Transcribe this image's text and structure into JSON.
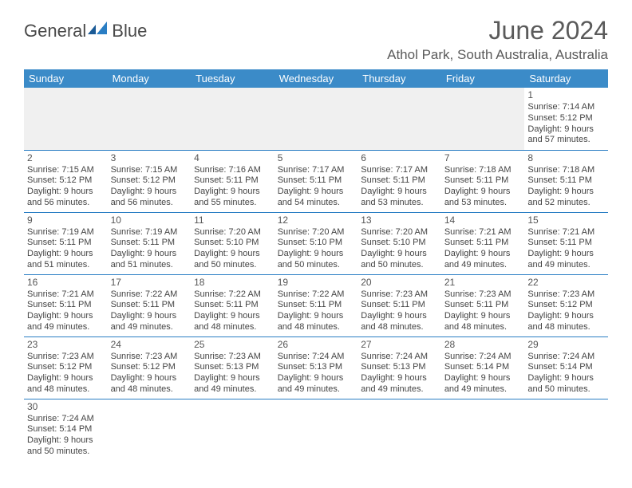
{
  "logo": {
    "part1": "General",
    "part2": "Blue"
  },
  "title": "June 2024",
  "location": "Athol Park, South Australia, Australia",
  "colors": {
    "header_bg": "#3b8bc8",
    "header_text": "#ffffff",
    "border": "#2a7ec4",
    "body_text": "#444444",
    "title_text": "#5a5a5a",
    "blank_bg": "#f0f0f0"
  },
  "day_headers": [
    "Sunday",
    "Monday",
    "Tuesday",
    "Wednesday",
    "Thursday",
    "Friday",
    "Saturday"
  ],
  "font": {
    "title_size": 32,
    "location_size": 17,
    "header_size": 13,
    "cell_size": 11
  },
  "weeks": [
    [
      {
        "blank": true
      },
      {
        "blank": true
      },
      {
        "blank": true
      },
      {
        "blank": true
      },
      {
        "blank": true
      },
      {
        "blank": true
      },
      {
        "day": "1",
        "sunrise": "Sunrise: 7:14 AM",
        "sunset": "Sunset: 5:12 PM",
        "daylight": "Daylight: 9 hours and 57 minutes."
      }
    ],
    [
      {
        "day": "2",
        "sunrise": "Sunrise: 7:15 AM",
        "sunset": "Sunset: 5:12 PM",
        "daylight": "Daylight: 9 hours and 56 minutes."
      },
      {
        "day": "3",
        "sunrise": "Sunrise: 7:15 AM",
        "sunset": "Sunset: 5:12 PM",
        "daylight": "Daylight: 9 hours and 56 minutes."
      },
      {
        "day": "4",
        "sunrise": "Sunrise: 7:16 AM",
        "sunset": "Sunset: 5:11 PM",
        "daylight": "Daylight: 9 hours and 55 minutes."
      },
      {
        "day": "5",
        "sunrise": "Sunrise: 7:17 AM",
        "sunset": "Sunset: 5:11 PM",
        "daylight": "Daylight: 9 hours and 54 minutes."
      },
      {
        "day": "6",
        "sunrise": "Sunrise: 7:17 AM",
        "sunset": "Sunset: 5:11 PM",
        "daylight": "Daylight: 9 hours and 53 minutes."
      },
      {
        "day": "7",
        "sunrise": "Sunrise: 7:18 AM",
        "sunset": "Sunset: 5:11 PM",
        "daylight": "Daylight: 9 hours and 53 minutes."
      },
      {
        "day": "8",
        "sunrise": "Sunrise: 7:18 AM",
        "sunset": "Sunset: 5:11 PM",
        "daylight": "Daylight: 9 hours and 52 minutes."
      }
    ],
    [
      {
        "day": "9",
        "sunrise": "Sunrise: 7:19 AM",
        "sunset": "Sunset: 5:11 PM",
        "daylight": "Daylight: 9 hours and 51 minutes."
      },
      {
        "day": "10",
        "sunrise": "Sunrise: 7:19 AM",
        "sunset": "Sunset: 5:11 PM",
        "daylight": "Daylight: 9 hours and 51 minutes."
      },
      {
        "day": "11",
        "sunrise": "Sunrise: 7:20 AM",
        "sunset": "Sunset: 5:10 PM",
        "daylight": "Daylight: 9 hours and 50 minutes."
      },
      {
        "day": "12",
        "sunrise": "Sunrise: 7:20 AM",
        "sunset": "Sunset: 5:10 PM",
        "daylight": "Daylight: 9 hours and 50 minutes."
      },
      {
        "day": "13",
        "sunrise": "Sunrise: 7:20 AM",
        "sunset": "Sunset: 5:10 PM",
        "daylight": "Daylight: 9 hours and 50 minutes."
      },
      {
        "day": "14",
        "sunrise": "Sunrise: 7:21 AM",
        "sunset": "Sunset: 5:11 PM",
        "daylight": "Daylight: 9 hours and 49 minutes."
      },
      {
        "day": "15",
        "sunrise": "Sunrise: 7:21 AM",
        "sunset": "Sunset: 5:11 PM",
        "daylight": "Daylight: 9 hours and 49 minutes."
      }
    ],
    [
      {
        "day": "16",
        "sunrise": "Sunrise: 7:21 AM",
        "sunset": "Sunset: 5:11 PM",
        "daylight": "Daylight: 9 hours and 49 minutes."
      },
      {
        "day": "17",
        "sunrise": "Sunrise: 7:22 AM",
        "sunset": "Sunset: 5:11 PM",
        "daylight": "Daylight: 9 hours and 49 minutes."
      },
      {
        "day": "18",
        "sunrise": "Sunrise: 7:22 AM",
        "sunset": "Sunset: 5:11 PM",
        "daylight": "Daylight: 9 hours and 48 minutes."
      },
      {
        "day": "19",
        "sunrise": "Sunrise: 7:22 AM",
        "sunset": "Sunset: 5:11 PM",
        "daylight": "Daylight: 9 hours and 48 minutes."
      },
      {
        "day": "20",
        "sunrise": "Sunrise: 7:23 AM",
        "sunset": "Sunset: 5:11 PM",
        "daylight": "Daylight: 9 hours and 48 minutes."
      },
      {
        "day": "21",
        "sunrise": "Sunrise: 7:23 AM",
        "sunset": "Sunset: 5:11 PM",
        "daylight": "Daylight: 9 hours and 48 minutes."
      },
      {
        "day": "22",
        "sunrise": "Sunrise: 7:23 AM",
        "sunset": "Sunset: 5:12 PM",
        "daylight": "Daylight: 9 hours and 48 minutes."
      }
    ],
    [
      {
        "day": "23",
        "sunrise": "Sunrise: 7:23 AM",
        "sunset": "Sunset: 5:12 PM",
        "daylight": "Daylight: 9 hours and 48 minutes."
      },
      {
        "day": "24",
        "sunrise": "Sunrise: 7:23 AM",
        "sunset": "Sunset: 5:12 PM",
        "daylight": "Daylight: 9 hours and 48 minutes."
      },
      {
        "day": "25",
        "sunrise": "Sunrise: 7:23 AM",
        "sunset": "Sunset: 5:13 PM",
        "daylight": "Daylight: 9 hours and 49 minutes."
      },
      {
        "day": "26",
        "sunrise": "Sunrise: 7:24 AM",
        "sunset": "Sunset: 5:13 PM",
        "daylight": "Daylight: 9 hours and 49 minutes."
      },
      {
        "day": "27",
        "sunrise": "Sunrise: 7:24 AM",
        "sunset": "Sunset: 5:13 PM",
        "daylight": "Daylight: 9 hours and 49 minutes."
      },
      {
        "day": "28",
        "sunrise": "Sunrise: 7:24 AM",
        "sunset": "Sunset: 5:14 PM",
        "daylight": "Daylight: 9 hours and 49 minutes."
      },
      {
        "day": "29",
        "sunrise": "Sunrise: 7:24 AM",
        "sunset": "Sunset: 5:14 PM",
        "daylight": "Daylight: 9 hours and 50 minutes."
      }
    ],
    [
      {
        "day": "30",
        "sunrise": "Sunrise: 7:24 AM",
        "sunset": "Sunset: 5:14 PM",
        "daylight": "Daylight: 9 hours and 50 minutes."
      },
      {
        "trailing": true
      },
      {
        "trailing": true
      },
      {
        "trailing": true
      },
      {
        "trailing": true
      },
      {
        "trailing": true
      },
      {
        "trailing": true
      }
    ]
  ]
}
